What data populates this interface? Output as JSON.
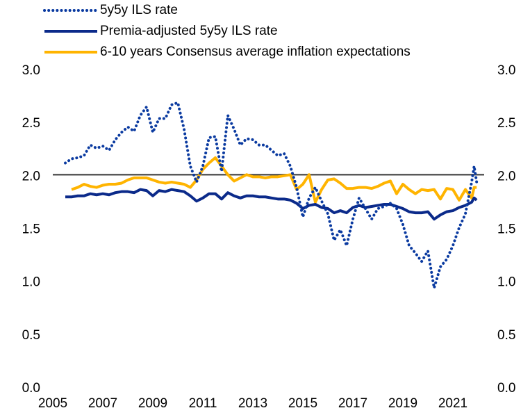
{
  "chart_data": {
    "type": "line",
    "x": [
      2005.5,
      2005.75,
      2006,
      2006.25,
      2006.5,
      2006.75,
      2007,
      2007.25,
      2007.5,
      2007.75,
      2008,
      2008.25,
      2008.5,
      2008.75,
      2009,
      2009.25,
      2009.5,
      2009.75,
      2010,
      2010.25,
      2010.5,
      2010.75,
      2011,
      2011.25,
      2011.5,
      2011.75,
      2012,
      2012.25,
      2012.5,
      2012.75,
      2013,
      2013.25,
      2013.5,
      2013.75,
      2014,
      2014.25,
      2014.5,
      2014.75,
      2015,
      2015.25,
      2015.5,
      2015.75,
      2016,
      2016.25,
      2016.5,
      2016.75,
      2017,
      2017.25,
      2017.5,
      2017.75,
      2018,
      2018.25,
      2018.5,
      2018.75,
      2019,
      2019.25,
      2019.5,
      2019.75,
      2020,
      2020.25,
      2020.5,
      2020.75,
      2021,
      2021.25,
      2021.5,
      2021.75,
      2021.85,
      2021.95
    ],
    "series": [
      {
        "name": "5y5y ILS rate",
        "color": "#0a3aa0",
        "line_style": "dotted",
        "values": [
          2.13,
          2.17,
          2.18,
          2.2,
          2.3,
          2.27,
          2.29,
          2.25,
          2.35,
          2.42,
          2.47,
          2.43,
          2.58,
          2.66,
          2.42,
          2.55,
          2.55,
          2.68,
          2.7,
          2.45,
          2.1,
          1.95,
          2.1,
          2.37,
          2.38,
          2.05,
          2.58,
          2.45,
          2.3,
          2.36,
          2.35,
          2.3,
          2.3,
          2.25,
          2.2,
          2.22,
          2.1,
          1.9,
          1.62,
          1.8,
          1.9,
          1.77,
          1.65,
          1.4,
          1.5,
          1.35,
          1.6,
          1.8,
          1.7,
          1.6,
          1.7,
          1.72,
          1.75,
          1.7,
          1.55,
          1.35,
          1.28,
          1.2,
          1.3,
          0.95,
          1.15,
          1.22,
          1.35,
          1.52,
          1.65,
          1.95,
          2.1,
          1.95
        ]
      },
      {
        "name": "Premia-adjusted 5y5y ILS rate",
        "color": "#0b2a8a",
        "line_style": "solid",
        "values": [
          1.81,
          1.81,
          1.82,
          1.82,
          1.84,
          1.83,
          1.84,
          1.83,
          1.85,
          1.86,
          1.86,
          1.85,
          1.88,
          1.87,
          1.82,
          1.87,
          1.86,
          1.88,
          1.87,
          1.86,
          1.82,
          1.77,
          1.8,
          1.84,
          1.84,
          1.79,
          1.85,
          1.82,
          1.8,
          1.82,
          1.82,
          1.81,
          1.81,
          1.8,
          1.79,
          1.79,
          1.78,
          1.75,
          1.7,
          1.73,
          1.74,
          1.71,
          1.7,
          1.66,
          1.68,
          1.66,
          1.71,
          1.73,
          1.71,
          1.72,
          1.73,
          1.74,
          1.74,
          1.72,
          1.7,
          1.67,
          1.66,
          1.66,
          1.67,
          1.6,
          1.64,
          1.67,
          1.68,
          1.71,
          1.73,
          1.76,
          1.8,
          1.78
        ]
      },
      {
        "name": "6-10 years Consensus average inflation expectations",
        "color": "#ffb400",
        "line_style": "solid",
        "values": [
          null,
          1.88,
          1.9,
          1.93,
          1.91,
          1.9,
          1.92,
          1.93,
          1.93,
          1.94,
          1.97,
          1.99,
          1.99,
          1.99,
          1.97,
          1.95,
          1.94,
          1.95,
          1.94,
          1.93,
          1.9,
          1.97,
          2.07,
          2.13,
          2.18,
          2.1,
          2.02,
          1.96,
          1.99,
          2.02,
          2.0,
          2.0,
          1.99,
          2.0,
          2.0,
          2.01,
          2.02,
          1.88,
          1.93,
          2.02,
          1.76,
          1.88,
          1.97,
          1.98,
          1.94,
          1.89,
          1.89,
          1.9,
          1.9,
          1.89,
          1.91,
          1.94,
          1.96,
          1.84,
          1.93,
          1.88,
          1.84,
          1.88,
          1.87,
          1.88,
          1.79,
          1.89,
          1.88,
          1.78,
          1.88,
          1.8,
          1.9,
          1.9
        ]
      }
    ],
    "xlim": [
      2005,
      2022.25
    ],
    "xticks": [
      2005,
      2007,
      2009,
      2011,
      2013,
      2015,
      2017,
      2019,
      2021
    ],
    "ylim": [
      0,
      3
    ],
    "yticks": [
      {
        "value": 0,
        "label": "0.0"
      },
      0.5,
      {
        "value": 1,
        "label": "1.0"
      },
      1.5,
      {
        "value": 2,
        "label": "2.0"
      },
      2.5,
      {
        "value": 3,
        "label": "3.0"
      }
    ],
    "y2lim": [
      0,
      3
    ],
    "y2ticks": [
      {
        "value": 0,
        "label": "0.0"
      },
      0.5,
      {
        "value": 1,
        "label": "1.0"
      },
      1.5,
      {
        "value": 2,
        "label": "2.0"
      },
      2.5,
      {
        "value": 3,
        "label": "3.0"
      }
    ],
    "reference_line": {
      "value": 2.02,
      "color": "#595959"
    },
    "legend": "top-left"
  }
}
